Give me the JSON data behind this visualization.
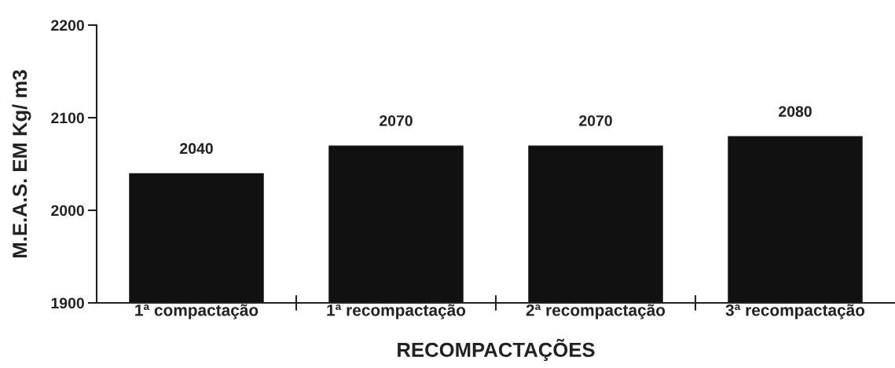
{
  "chart_data": {
    "type": "bar",
    "xlabel": "RECOMPACTAÇÕES",
    "ylabel": "M.E.A.S. EM Kg/ m3",
    "categories": [
      "1ª compactação",
      "1ª recompactação",
      "2ª recompactação",
      "3ª recompactação"
    ],
    "values": [
      2040,
      2070,
      2070,
      2080
    ],
    "color": "#111111",
    "ylim": [
      1900,
      2200
    ],
    "yticks": [
      1900,
      2000,
      2100,
      2200
    ],
    "data_labels": true
  }
}
